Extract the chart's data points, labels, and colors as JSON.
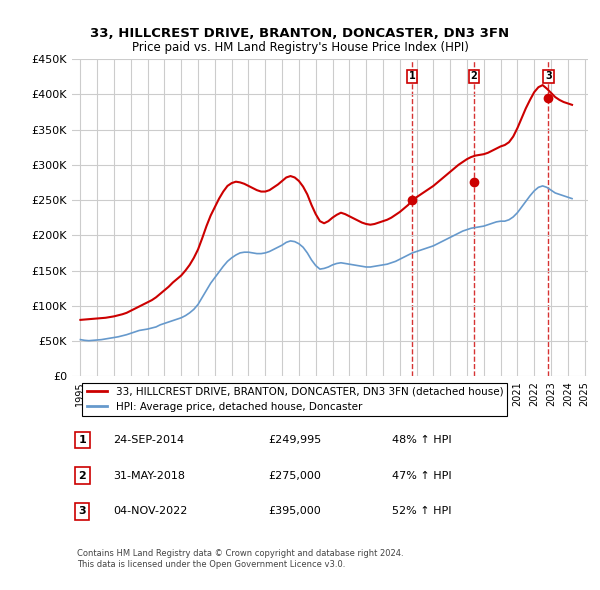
{
  "title": "33, HILLCREST DRIVE, BRANTON, DONCASTER, DN3 3FN",
  "subtitle": "Price paid vs. HM Land Registry's House Price Index (HPI)",
  "ylabel": "",
  "xlabel": "",
  "ylim": [
    0,
    450000
  ],
  "yticks": [
    0,
    50000,
    100000,
    150000,
    200000,
    250000,
    300000,
    350000,
    400000,
    450000
  ],
  "ytick_labels": [
    "£0",
    "£50K",
    "£100K",
    "£150K",
    "£200K",
    "£250K",
    "£300K",
    "£350K",
    "£400K",
    "£450K"
  ],
  "price_paid_color": "#cc0000",
  "hpi_color": "#6699cc",
  "sale_marker_color": "#cc0000",
  "dashed_line_color": "#cc0000",
  "background_color": "#ffffff",
  "grid_color": "#cccccc",
  "legend_label_red": "33, HILLCREST DRIVE, BRANTON, DONCASTER, DN3 3FN (detached house)",
  "legend_label_blue": "HPI: Average price, detached house, Doncaster",
  "sales": [
    {
      "label": "1",
      "date": "2014-09-24",
      "price": 249995,
      "hpi_pct": "48% ↑ HPI",
      "date_str": "24-SEP-2014"
    },
    {
      "label": "2",
      "date": "2018-05-31",
      "price": 275000,
      "hpi_pct": "47% ↑ HPI",
      "date_str": "31-MAY-2018"
    },
    {
      "label": "3",
      "date": "2022-11-04",
      "price": 395000,
      "hpi_pct": "52% ↑ HPI",
      "date_str": "04-NOV-2022"
    }
  ],
  "footnote": "Contains HM Land Registry data © Crown copyright and database right 2024.\nThis data is licensed under the Open Government Licence v3.0.",
  "hpi_data": {
    "dates": [
      1995.0,
      1995.25,
      1995.5,
      1995.75,
      1996.0,
      1996.25,
      1996.5,
      1996.75,
      1997.0,
      1997.25,
      1997.5,
      1997.75,
      1998.0,
      1998.25,
      1998.5,
      1998.75,
      1999.0,
      1999.25,
      1999.5,
      1999.75,
      2000.0,
      2000.25,
      2000.5,
      2000.75,
      2001.0,
      2001.25,
      2001.5,
      2001.75,
      2002.0,
      2002.25,
      2002.5,
      2002.75,
      2003.0,
      2003.25,
      2003.5,
      2003.75,
      2004.0,
      2004.25,
      2004.5,
      2004.75,
      2005.0,
      2005.25,
      2005.5,
      2005.75,
      2006.0,
      2006.25,
      2006.5,
      2006.75,
      2007.0,
      2007.25,
      2007.5,
      2007.75,
      2008.0,
      2008.25,
      2008.5,
      2008.75,
      2009.0,
      2009.25,
      2009.5,
      2009.75,
      2010.0,
      2010.25,
      2010.5,
      2010.75,
      2011.0,
      2011.25,
      2011.5,
      2011.75,
      2012.0,
      2012.25,
      2012.5,
      2012.75,
      2013.0,
      2013.25,
      2013.5,
      2013.75,
      2014.0,
      2014.25,
      2014.5,
      2014.75,
      2015.0,
      2015.25,
      2015.5,
      2015.75,
      2016.0,
      2016.25,
      2016.5,
      2016.75,
      2017.0,
      2017.25,
      2017.5,
      2017.75,
      2018.0,
      2018.25,
      2018.5,
      2018.75,
      2019.0,
      2019.25,
      2019.5,
      2019.75,
      2020.0,
      2020.25,
      2020.5,
      2020.75,
      2021.0,
      2021.25,
      2021.5,
      2021.75,
      2022.0,
      2022.25,
      2022.5,
      2022.75,
      2023.0,
      2023.25,
      2023.5,
      2023.75,
      2024.0,
      2024.25
    ],
    "values": [
      52000,
      51000,
      50500,
      51000,
      51500,
      52000,
      53000,
      54000,
      55000,
      56000,
      57500,
      59000,
      61000,
      63000,
      65000,
      66000,
      67000,
      68500,
      70000,
      73000,
      75000,
      77000,
      79000,
      81000,
      83000,
      86000,
      90000,
      95000,
      102000,
      112000,
      122000,
      132000,
      140000,
      148000,
      156000,
      163000,
      168000,
      172000,
      175000,
      176000,
      176000,
      175000,
      174000,
      174000,
      175000,
      177000,
      180000,
      183000,
      186000,
      190000,
      192000,
      191000,
      188000,
      183000,
      175000,
      165000,
      157000,
      152000,
      153000,
      155000,
      158000,
      160000,
      161000,
      160000,
      159000,
      158000,
      157000,
      156000,
      155000,
      155000,
      156000,
      157000,
      158000,
      159000,
      161000,
      163000,
      166000,
      169000,
      172000,
      175000,
      177000,
      179000,
      181000,
      183000,
      185000,
      188000,
      191000,
      194000,
      197000,
      200000,
      203000,
      206000,
      208000,
      210000,
      211000,
      212000,
      213000,
      215000,
      217000,
      219000,
      220000,
      220000,
      222000,
      226000,
      232000,
      240000,
      248000,
      256000,
      263000,
      268000,
      270000,
      268000,
      264000,
      260000,
      258000,
      256000,
      254000,
      252000
    ]
  },
  "price_paid_data": {
    "dates": [
      1995.0,
      1995.25,
      1995.5,
      1995.75,
      1996.0,
      1996.25,
      1996.5,
      1996.75,
      1997.0,
      1997.25,
      1997.5,
      1997.75,
      1998.0,
      1998.25,
      1998.5,
      1998.75,
      1999.0,
      1999.25,
      1999.5,
      1999.75,
      2000.0,
      2000.25,
      2000.5,
      2000.75,
      2001.0,
      2001.25,
      2001.5,
      2001.75,
      2002.0,
      2002.25,
      2002.5,
      2002.75,
      2003.0,
      2003.25,
      2003.5,
      2003.75,
      2004.0,
      2004.25,
      2004.5,
      2004.75,
      2005.0,
      2005.25,
      2005.5,
      2005.75,
      2006.0,
      2006.25,
      2006.5,
      2006.75,
      2007.0,
      2007.25,
      2007.5,
      2007.75,
      2008.0,
      2008.25,
      2008.5,
      2008.75,
      2009.0,
      2009.25,
      2009.5,
      2009.75,
      2010.0,
      2010.25,
      2010.5,
      2010.75,
      2011.0,
      2011.25,
      2011.5,
      2011.75,
      2012.0,
      2012.25,
      2012.5,
      2012.75,
      2013.0,
      2013.25,
      2013.5,
      2013.75,
      2014.0,
      2014.25,
      2014.5,
      2014.75,
      2015.0,
      2015.25,
      2015.5,
      2015.75,
      2016.0,
      2016.25,
      2016.5,
      2016.75,
      2017.0,
      2017.25,
      2017.5,
      2017.75,
      2018.0,
      2018.25,
      2018.5,
      2018.75,
      2019.0,
      2019.25,
      2019.5,
      2019.75,
      2020.0,
      2020.25,
      2020.5,
      2020.75,
      2021.0,
      2021.25,
      2021.5,
      2021.75,
      2022.0,
      2022.25,
      2022.5,
      2022.75,
      2023.0,
      2023.25,
      2023.5,
      2023.75,
      2024.0,
      2024.25
    ],
    "values": [
      80000,
      80500,
      81000,
      81500,
      82000,
      82500,
      83000,
      84000,
      85000,
      86500,
      88000,
      90000,
      93000,
      96000,
      99000,
      102000,
      105000,
      108000,
      112000,
      117000,
      122000,
      127000,
      133000,
      138000,
      143000,
      150000,
      158000,
      168000,
      180000,
      196000,
      213000,
      228000,
      240000,
      252000,
      262000,
      270000,
      274000,
      276000,
      275000,
      273000,
      270000,
      267000,
      264000,
      262000,
      262000,
      264000,
      268000,
      272000,
      277000,
      282000,
      284000,
      282000,
      277000,
      269000,
      258000,
      243000,
      230000,
      220000,
      217000,
      220000,
      225000,
      229000,
      232000,
      230000,
      227000,
      224000,
      221000,
      218000,
      216000,
      215000,
      216000,
      218000,
      220000,
      222000,
      225000,
      229000,
      233000,
      238000,
      243000,
      249995,
      254000,
      258000,
      262000,
      266000,
      270000,
      275000,
      280000,
      285000,
      290000,
      295000,
      300000,
      304000,
      308000,
      311000,
      313000,
      314000,
      315000,
      317000,
      320000,
      323000,
      326000,
      328000,
      332000,
      340000,
      352000,
      366000,
      380000,
      392000,
      403000,
      410000,
      413000,
      408000,
      402000,
      396000,
      392000,
      389000,
      387000,
      385000
    ]
  }
}
